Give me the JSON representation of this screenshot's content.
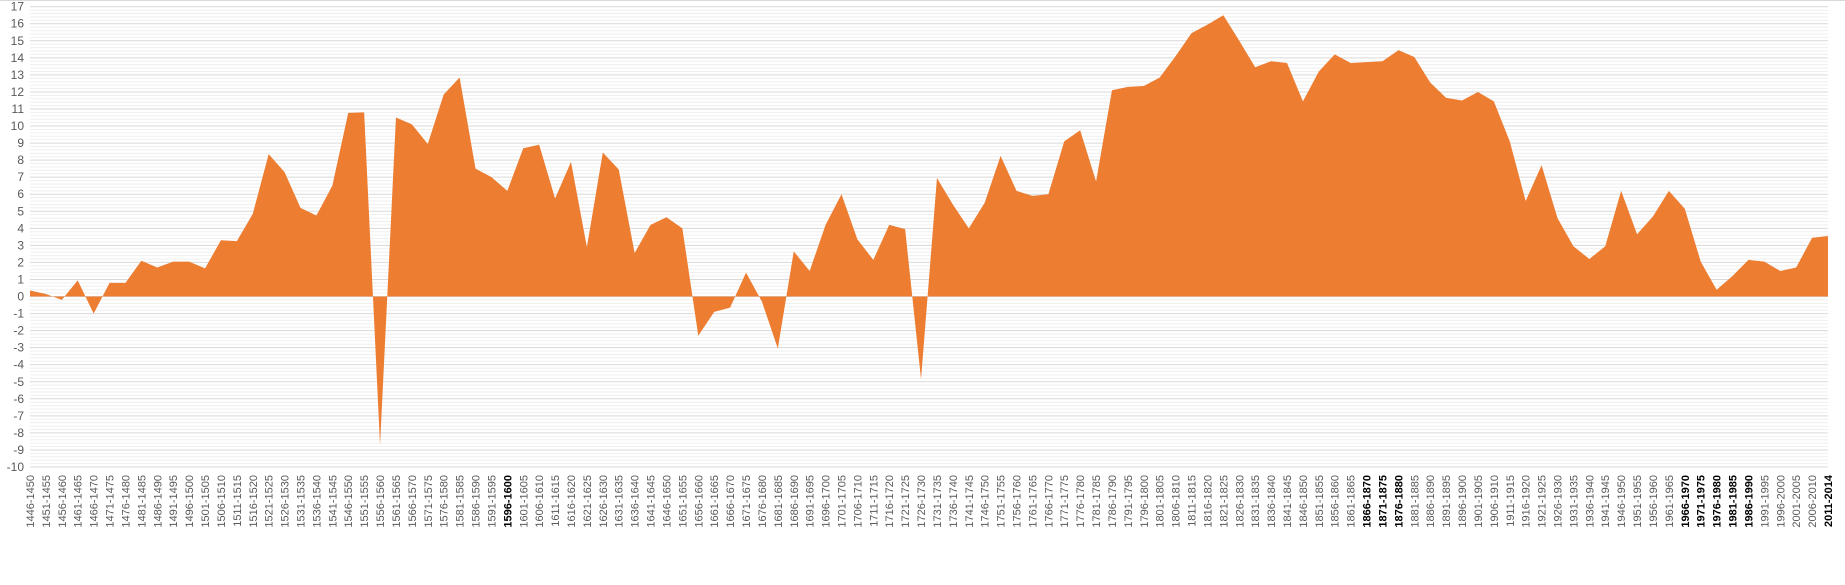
{
  "chart_data": {
    "type": "area",
    "title": "",
    "xlabel": "",
    "ylabel": "",
    "ylim": [
      -10,
      17
    ],
    "ytick_step": 1,
    "grid": {
      "major": true,
      "minor": true
    },
    "legend": "none",
    "colors": {
      "area": "#ed7d31",
      "major_grid": "#d9d9d9",
      "minor_grid": "#efefef",
      "tick_label": "#595959",
      "bold_tick_label": "#000000"
    },
    "bold_categories": [
      "1596-1600",
      "1866-1870",
      "1871-1875",
      "1876-1880",
      "1966-1970",
      "1971-1975",
      "1976-1980",
      "1981-1985",
      "1986-1990",
      "2011-2014"
    ],
    "categories": [
      "1446-1450",
      "1451-1455",
      "1456-1460",
      "1461-1465",
      "1466-1470",
      "1471-1475",
      "1476-1480",
      "1481-1485",
      "1486-1490",
      "1491-1495",
      "1496-1500",
      "1501-1505",
      "1506-1510",
      "1511-1515",
      "1516-1520",
      "1521-1525",
      "1526-1530",
      "1531-1535",
      "1536-1540",
      "1541-1545",
      "1546-1550",
      "1551-1555",
      "1556-1560",
      "1561-1565",
      "1566-1570",
      "1571-1575",
      "1576-1580",
      "1581-1585",
      "1586-1590",
      "1591-1595",
      "1596-1600",
      "1601-1605",
      "1606-1610",
      "1611-1615",
      "1616-1620",
      "1621-1625",
      "1626-1630",
      "1631-1635",
      "1636-1640",
      "1641-1645",
      "1646-1650",
      "1651-1655",
      "1656-1660",
      "1661-1665",
      "1666-1670",
      "1671-1675",
      "1676-1680",
      "1681-1685",
      "1686-1690",
      "1691-1695",
      "1696-1700",
      "1701-1705",
      "1706-1710",
      "1711-1715",
      "1716-1720",
      "1721-1725",
      "1726-1730",
      "1731-1735",
      "1736-1740",
      "1741-1745",
      "1746-1750",
      "1751-1755",
      "1756-1760",
      "1761-1765",
      "1766-1770",
      "1771-1775",
      "1776-1780",
      "1781-1785",
      "1786-1790",
      "1791-1795",
      "1796-1800",
      "1801-1805",
      "1806-1810",
      "1811-1815",
      "1816-1820",
      "1821-1825",
      "1826-1830",
      "1831-1835",
      "1836-1840",
      "1841-1845",
      "1846-1850",
      "1851-1855",
      "1856-1860",
      "1861-1865",
      "1866-1870",
      "1871-1875",
      "1876-1880",
      "1881-1885",
      "1886-1890",
      "1891-1895",
      "1896-1900",
      "1901-1905",
      "1906-1910",
      "1911-1915",
      "1916-1920",
      "1921-1925",
      "1926-1930",
      "1931-1935",
      "1936-1940",
      "1941-1945",
      "1946-1950",
      "1951-1955",
      "1956-1960",
      "1961-1965",
      "1966-1970",
      "1971-1975",
      "1976-1980",
      "1981-1985",
      "1986-1990",
      "1991-1995",
      "1996-2000",
      "2001-2005",
      "2006-2010",
      "2011-2014"
    ],
    "values": [
      0.35,
      0.15,
      -0.2,
      0.95,
      -1.0,
      0.8,
      0.8,
      2.1,
      1.7,
      2.05,
      2.05,
      1.65,
      3.3,
      3.25,
      4.85,
      8.35,
      7.3,
      5.2,
      4.75,
      6.5,
      10.77,
      10.8,
      -8.7,
      10.5,
      10.1,
      8.95,
      11.85,
      12.85,
      7.5,
      7.0,
      6.2,
      8.7,
      8.9,
      5.75,
      7.9,
      2.9,
      8.45,
      7.45,
      2.55,
      4.2,
      4.65,
      4.0,
      -2.3,
      -0.9,
      -0.65,
      1.4,
      -0.3,
      -3.05,
      2.65,
      1.5,
      4.2,
      6.0,
      3.35,
      2.15,
      4.2,
      3.95,
      -4.85,
      6.95,
      5.4,
      4.0,
      5.5,
      8.25,
      6.2,
      5.9,
      6.0,
      9.1,
      9.75,
      6.75,
      12.1,
      12.3,
      12.35,
      12.85,
      14.1,
      15.45,
      15.95,
      16.5,
      15.0,
      13.45,
      13.8,
      13.7,
      11.45,
      13.2,
      14.2,
      13.7,
      13.75,
      13.8,
      14.45,
      14.05,
      12.55,
      11.65,
      11.5,
      12.0,
      11.45,
      9.1,
      5.6,
      7.7,
      4.6,
      2.95,
      2.2,
      2.95,
      6.2,
      3.65,
      4.7,
      6.2,
      5.15,
      2.05,
      0.4,
      1.2,
      2.15,
      2.05,
      1.5,
      1.7,
      3.45,
      3.55
    ]
  }
}
